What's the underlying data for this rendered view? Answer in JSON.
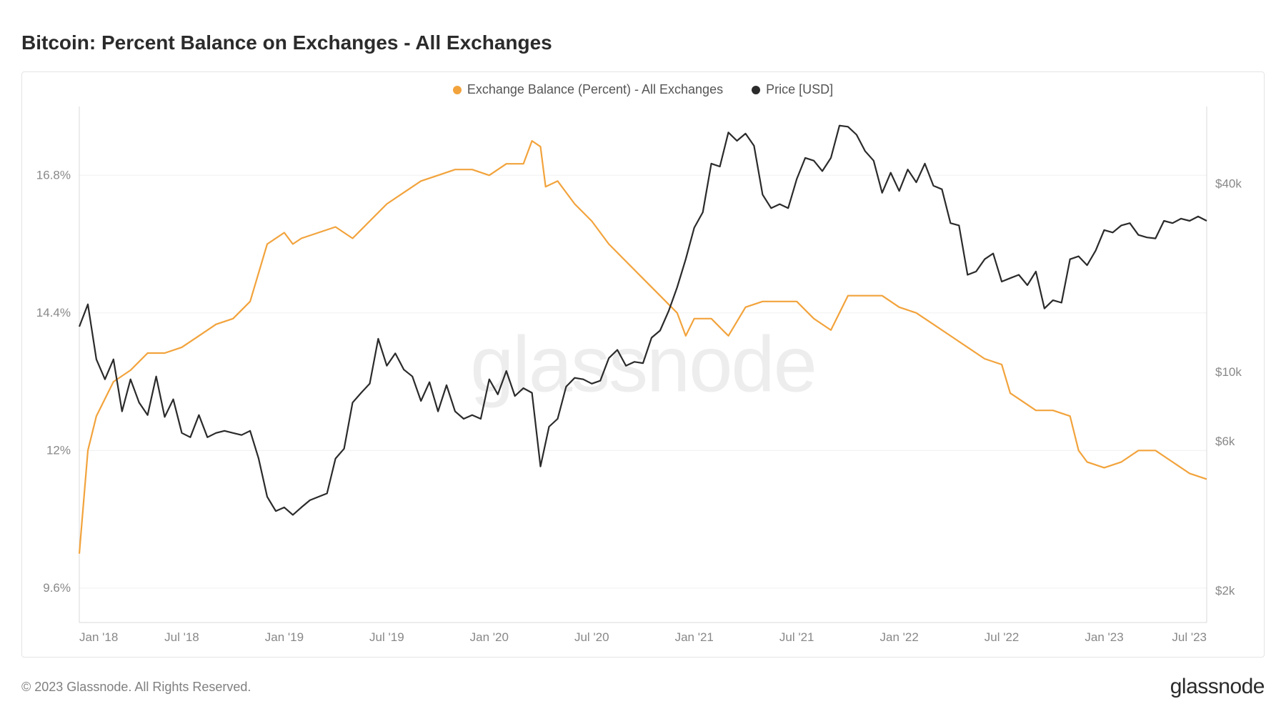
{
  "title": "Bitcoin: Percent Balance on Exchanges - All Exchanges",
  "watermark": "glassnode",
  "copyright": "© 2023 Glassnode. All Rights Reserved.",
  "brand": "glassnode",
  "chart": {
    "type": "line-dual-axis",
    "background_color": "#ffffff",
    "grid_color": "#f0f0f0",
    "axis_color": "#d8d8d8",
    "label_color": "#888888",
    "label_fontsize": 17,
    "title_fontsize": 28,
    "title_color": "#2b2b2b",
    "line_width": 2.2,
    "x": {
      "min": 0,
      "max": 66,
      "ticks": [
        0,
        6,
        12,
        18,
        24,
        30,
        36,
        42,
        48,
        54,
        60,
        66
      ],
      "tick_labels": [
        "Jan '18",
        "Jul '18",
        "Jan '19",
        "Jul '19",
        "Jan '20",
        "Jul '20",
        "Jan '21",
        "Jul '21",
        "Jan '22",
        "Jul '22",
        "Jan '23",
        "Jul '23"
      ]
    },
    "y_left": {
      "label_suffix": "%",
      "scale": "linear",
      "min": 9.0,
      "max": 18.0,
      "ticks": [
        9.6,
        12.0,
        14.4,
        16.8
      ],
      "tick_labels": [
        "9.6%",
        "12%",
        "14.4%",
        "16.8%"
      ]
    },
    "y_right": {
      "label_prefix": "$",
      "scale": "log",
      "min_log10": 3.2,
      "max_log10": 4.85,
      "ticks_log10": [
        3.301,
        3.778,
        4.0,
        4.602
      ],
      "tick_labels": [
        "$2k",
        "$6k",
        "$10k",
        "$40k"
      ]
    },
    "legend": [
      {
        "label": "Exchange Balance (Percent) - All Exchanges",
        "color": "#f2a33c"
      },
      {
        "label": "Price [USD]",
        "color": "#2b2b2b"
      }
    ],
    "series": [
      {
        "name": "balance_pct",
        "axis": "left",
        "color": "#f2a33c",
        "points": [
          [
            0,
            10.2
          ],
          [
            0.5,
            12.0
          ],
          [
            1,
            12.6
          ],
          [
            2,
            13.2
          ],
          [
            3,
            13.4
          ],
          [
            4,
            13.7
          ],
          [
            5,
            13.7
          ],
          [
            6,
            13.8
          ],
          [
            7,
            14.0
          ],
          [
            8,
            14.2
          ],
          [
            9,
            14.3
          ],
          [
            10,
            14.6
          ],
          [
            11,
            15.6
          ],
          [
            12,
            15.8
          ],
          [
            12.5,
            15.6
          ],
          [
            13,
            15.7
          ],
          [
            14,
            15.8
          ],
          [
            15,
            15.9
          ],
          [
            16,
            15.7
          ],
          [
            17,
            16.0
          ],
          [
            18,
            16.3
          ],
          [
            19,
            16.5
          ],
          [
            20,
            16.7
          ],
          [
            21,
            16.8
          ],
          [
            22,
            16.9
          ],
          [
            23,
            16.9
          ],
          [
            24,
            16.8
          ],
          [
            25,
            17.0
          ],
          [
            26,
            17.0
          ],
          [
            26.5,
            17.4
          ],
          [
            27,
            17.3
          ],
          [
            27.3,
            16.6
          ],
          [
            28,
            16.7
          ],
          [
            29,
            16.3
          ],
          [
            30,
            16.0
          ],
          [
            31,
            15.6
          ],
          [
            32,
            15.3
          ],
          [
            33,
            15.0
          ],
          [
            34,
            14.7
          ],
          [
            35,
            14.4
          ],
          [
            35.5,
            14.0
          ],
          [
            36,
            14.3
          ],
          [
            37,
            14.3
          ],
          [
            38,
            14.0
          ],
          [
            39,
            14.5
          ],
          [
            40,
            14.6
          ],
          [
            41,
            14.6
          ],
          [
            42,
            14.6
          ],
          [
            43,
            14.3
          ],
          [
            44,
            14.1
          ],
          [
            45,
            14.7
          ],
          [
            46,
            14.7
          ],
          [
            47,
            14.7
          ],
          [
            48,
            14.5
          ],
          [
            49,
            14.4
          ],
          [
            50,
            14.2
          ],
          [
            51,
            14.0
          ],
          [
            52,
            13.8
          ],
          [
            53,
            13.6
          ],
          [
            54,
            13.5
          ],
          [
            54.5,
            13.0
          ],
          [
            55,
            12.9
          ],
          [
            56,
            12.7
          ],
          [
            57,
            12.7
          ],
          [
            58,
            12.6
          ],
          [
            58.5,
            12.0
          ],
          [
            59,
            11.8
          ],
          [
            60,
            11.7
          ],
          [
            61,
            11.8
          ],
          [
            62,
            12.0
          ],
          [
            63,
            12.0
          ],
          [
            64,
            11.8
          ],
          [
            65,
            11.6
          ],
          [
            66,
            11.5
          ]
        ]
      },
      {
        "name": "price_usd",
        "axis": "right",
        "color": "#2b2b2b",
        "points": [
          [
            0,
            14000
          ],
          [
            0.5,
            16500
          ],
          [
            1,
            11000
          ],
          [
            1.5,
            9500
          ],
          [
            2,
            11000
          ],
          [
            2.5,
            7500
          ],
          [
            3,
            9500
          ],
          [
            3.5,
            8000
          ],
          [
            4,
            7300
          ],
          [
            4.5,
            9700
          ],
          [
            5,
            7200
          ],
          [
            5.5,
            8200
          ],
          [
            6,
            6400
          ],
          [
            6.5,
            6200
          ],
          [
            7,
            7300
          ],
          [
            7.5,
            6200
          ],
          [
            8,
            6400
          ],
          [
            8.5,
            6500
          ],
          [
            9,
            6400
          ],
          [
            9.5,
            6300
          ],
          [
            10,
            6500
          ],
          [
            10.5,
            5300
          ],
          [
            11,
            4000
          ],
          [
            11.5,
            3600
          ],
          [
            12,
            3700
          ],
          [
            12.5,
            3500
          ],
          [
            13,
            3700
          ],
          [
            13.5,
            3900
          ],
          [
            14,
            4000
          ],
          [
            14.5,
            4100
          ],
          [
            15,
            5300
          ],
          [
            15.5,
            5700
          ],
          [
            16,
            8000
          ],
          [
            16.5,
            8600
          ],
          [
            17,
            9200
          ],
          [
            17.5,
            12800
          ],
          [
            18,
            10500
          ],
          [
            18.5,
            11500
          ],
          [
            19,
            10200
          ],
          [
            19.5,
            9700
          ],
          [
            20,
            8100
          ],
          [
            20.5,
            9300
          ],
          [
            21,
            7500
          ],
          [
            21.5,
            9100
          ],
          [
            22,
            7500
          ],
          [
            22.5,
            7100
          ],
          [
            23,
            7300
          ],
          [
            23.5,
            7100
          ],
          [
            24,
            9500
          ],
          [
            24.5,
            8500
          ],
          [
            25,
            10100
          ],
          [
            25.5,
            8400
          ],
          [
            26,
            8900
          ],
          [
            26.5,
            8600
          ],
          [
            27,
            5000
          ],
          [
            27.5,
            6700
          ],
          [
            28,
            7100
          ],
          [
            28.5,
            9000
          ],
          [
            29,
            9600
          ],
          [
            29.5,
            9500
          ],
          [
            30,
            9200
          ],
          [
            30.5,
            9400
          ],
          [
            31,
            11100
          ],
          [
            31.5,
            11800
          ],
          [
            32,
            10500
          ],
          [
            32.5,
            10800
          ],
          [
            33,
            10700
          ],
          [
            33.5,
            12900
          ],
          [
            34,
            13600
          ],
          [
            34.5,
            15700
          ],
          [
            35,
            18700
          ],
          [
            35.5,
            23000
          ],
          [
            36,
            29000
          ],
          [
            36.5,
            32500
          ],
          [
            37,
            46500
          ],
          [
            37.5,
            45500
          ],
          [
            38,
            58500
          ],
          [
            38.5,
            55000
          ],
          [
            39,
            58000
          ],
          [
            39.5,
            53000
          ],
          [
            40,
            37000
          ],
          [
            40.5,
            33500
          ],
          [
            41,
            34500
          ],
          [
            41.5,
            33500
          ],
          [
            42,
            41500
          ],
          [
            42.5,
            48500
          ],
          [
            43,
            47500
          ],
          [
            43.5,
            44000
          ],
          [
            44,
            48500
          ],
          [
            44.5,
            61500
          ],
          [
            45,
            61000
          ],
          [
            45.5,
            57500
          ],
          [
            46,
            51000
          ],
          [
            46.5,
            47500
          ],
          [
            47,
            37500
          ],
          [
            47.5,
            43500
          ],
          [
            48,
            38000
          ],
          [
            48.5,
            44500
          ],
          [
            49,
            40500
          ],
          [
            49.5,
            46500
          ],
          [
            50,
            39500
          ],
          [
            50.5,
            38500
          ],
          [
            51,
            30000
          ],
          [
            51.5,
            29500
          ],
          [
            52,
            20500
          ],
          [
            52.5,
            21000
          ],
          [
            53,
            23000
          ],
          [
            53.5,
            24000
          ],
          [
            54,
            19500
          ],
          [
            54.5,
            20000
          ],
          [
            55,
            20500
          ],
          [
            55.5,
            19000
          ],
          [
            56,
            21000
          ],
          [
            56.5,
            16000
          ],
          [
            57,
            17000
          ],
          [
            57.5,
            16700
          ],
          [
            58,
            23000
          ],
          [
            58.5,
            23500
          ],
          [
            59,
            22000
          ],
          [
            59.5,
            24500
          ],
          [
            60,
            28500
          ],
          [
            60.5,
            28000
          ],
          [
            61,
            29500
          ],
          [
            61.5,
            30000
          ],
          [
            62,
            27500
          ],
          [
            62.5,
            27000
          ],
          [
            63,
            26800
          ],
          [
            63.5,
            30500
          ],
          [
            64,
            30000
          ],
          [
            64.5,
            31000
          ],
          [
            65,
            30500
          ],
          [
            65.5,
            31500
          ],
          [
            66,
            30500
          ]
        ]
      }
    ]
  }
}
